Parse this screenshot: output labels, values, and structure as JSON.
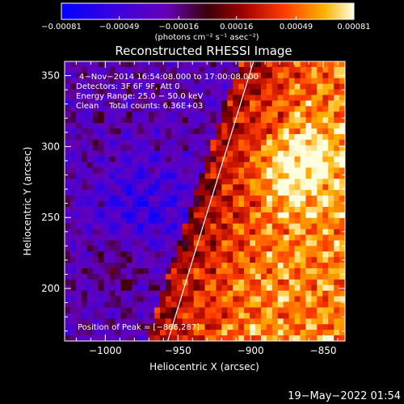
{
  "chart_data": {
    "type": "heatmap",
    "title": "Reconstructed RHESSI Image",
    "xlabel": "Heliocentric X (arcsec)",
    "ylabel": "Heliocentric Y (arcsec)",
    "xlim": [
      -1028,
      -835
    ],
    "ylim": [
      163,
      360
    ],
    "xticks": [
      -1000,
      -950,
      -900,
      -850
    ],
    "xtick_labels": [
      "−1000",
      "−950",
      "−900",
      "−850"
    ],
    "yticks": [
      200,
      250,
      300,
      350
    ],
    "ytick_labels": [
      "200",
      "250",
      "300",
      "350"
    ],
    "colorbar": {
      "min": -0.00081,
      "max": 0.00081,
      "ticks": [
        -0.00081,
        -0.00049,
        -0.00016,
        0.00016,
        0.00049,
        0.00081
      ],
      "tick_labels": [
        "−0.00081",
        "−0.00049",
        "−0.00016",
        "0.00016",
        "0.00049",
        "0.00081"
      ],
      "unit_label": "(photons cm⁻² s⁻¹ asec⁻²)"
    },
    "annotations": [
      "4−Nov−2014 16:54:08.000 to 17:00:08.000",
      "Detectors: 3F 6F 9F, Att 0",
      "Energy Range: 25.0 − 50.0 keV",
      "Clean    Total counts: 6.36E+03"
    ],
    "peak_label": "Position of Peak = [−866,287]",
    "peak": [
      -866,
      287
    ],
    "limb_line": {
      "x": [
        -957,
        -898
      ],
      "y": [
        163,
        360
      ]
    },
    "grid": false
  },
  "footer": {
    "timestamp": "19−May−2022 01:54"
  }
}
